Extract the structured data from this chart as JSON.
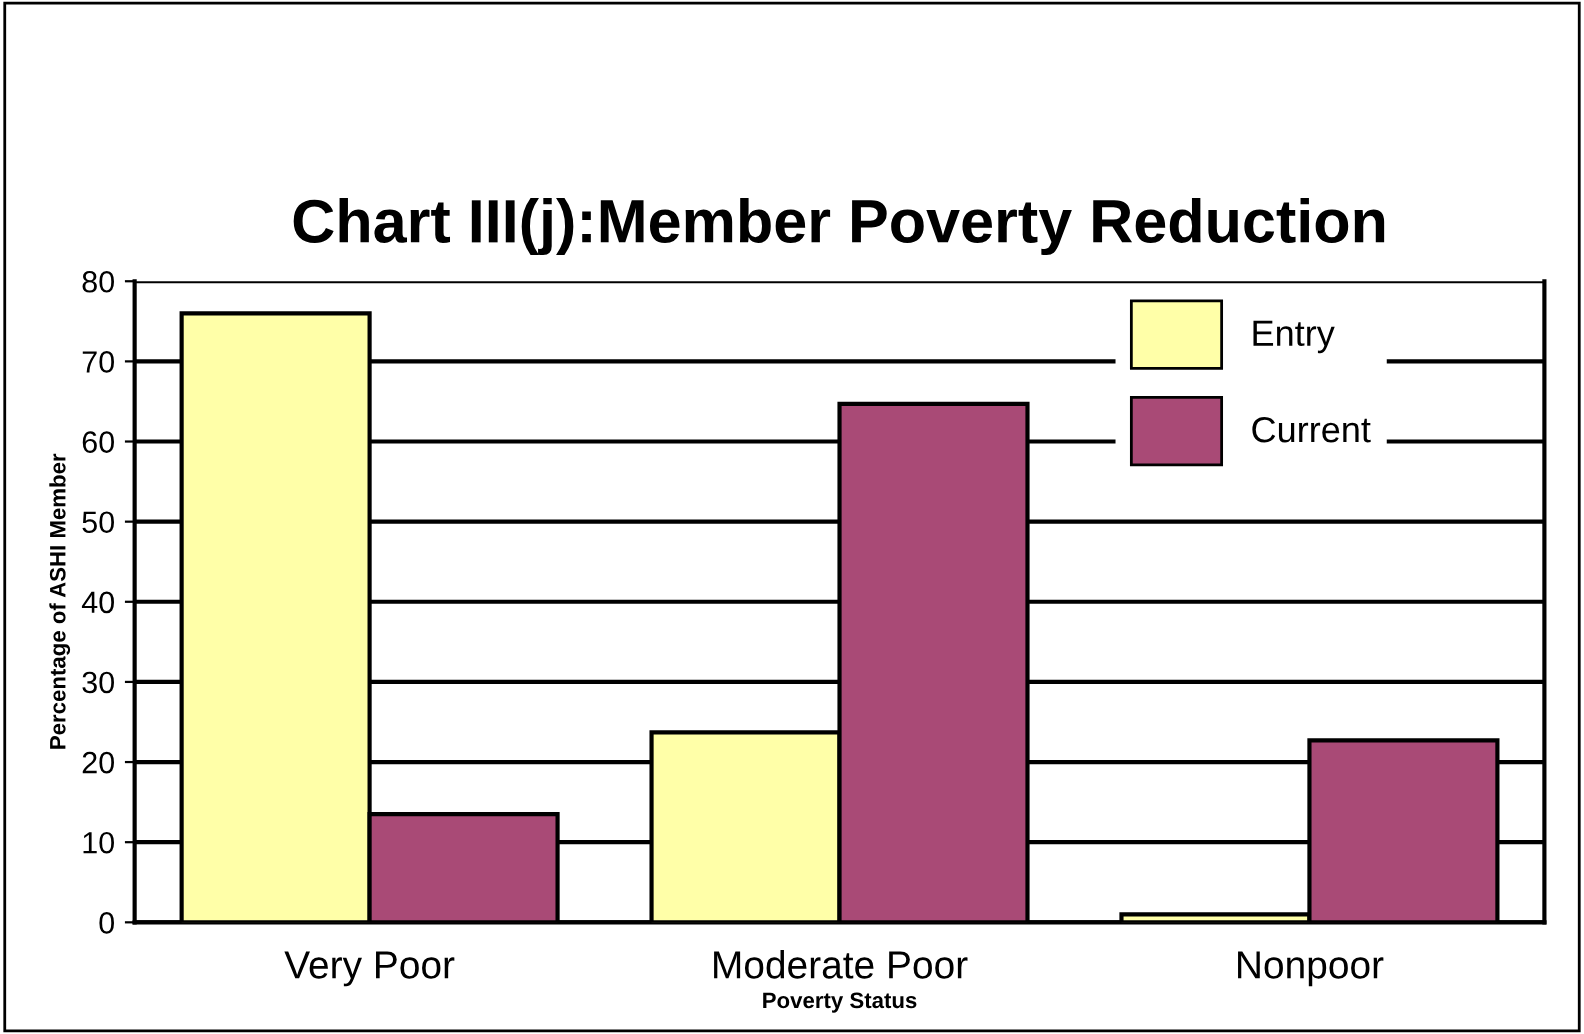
{
  "chart_data": {
    "type": "bar",
    "title": "Chart III(j):Member Poverty Reduction",
    "xlabel": "Poverty Status",
    "ylabel": "Percentage of ASHI Member",
    "categories": [
      "Very Poor",
      "Moderate Poor",
      "Nonpoor"
    ],
    "series": [
      {
        "name": "Entry",
        "color": "#ffffa8",
        "values": [
          76,
          23.7,
          1
        ]
      },
      {
        "name": "Current",
        "color": "#a94a76",
        "values": [
          13.5,
          64.7,
          22.7
        ]
      }
    ],
    "ylim": [
      0,
      80
    ],
    "yticks": [
      0,
      10,
      20,
      30,
      40,
      50,
      60,
      70,
      80
    ],
    "grid": "y",
    "legend": "top right"
  }
}
